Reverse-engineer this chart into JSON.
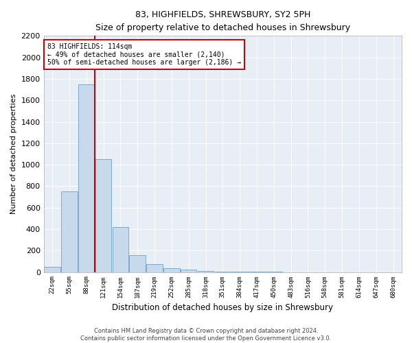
{
  "title": "83, HIGHFIELDS, SHREWSBURY, SY2 5PH",
  "subtitle": "Size of property relative to detached houses in Shrewsbury",
  "xlabel": "Distribution of detached houses by size in Shrewsbury",
  "ylabel": "Number of detached properties",
  "bar_labels": [
    "22sqm",
    "55sqm",
    "88sqm",
    "121sqm",
    "154sqm",
    "187sqm",
    "219sqm",
    "252sqm",
    "285sqm",
    "318sqm",
    "351sqm",
    "384sqm",
    "417sqm",
    "450sqm",
    "483sqm",
    "516sqm",
    "548sqm",
    "581sqm",
    "614sqm",
    "647sqm",
    "680sqm"
  ],
  "bar_values": [
    50,
    750,
    1750,
    1050,
    420,
    160,
    75,
    35,
    20,
    10,
    5,
    2,
    2,
    1,
    0,
    0,
    0,
    0,
    0,
    0,
    0
  ],
  "bar_color": "#c9d9ec",
  "bar_edge_color": "#6a9fc8",
  "background_color": "#e8eef5",
  "grid_color": "#ffffff",
  "ylim_max": 2200,
  "yticks": [
    0,
    200,
    400,
    600,
    800,
    1000,
    1200,
    1400,
    1600,
    1800,
    2000,
    2200
  ],
  "vline_x_index": 2.5,
  "annotation_line1": "83 HIGHFIELDS: 114sqm",
  "annotation_line2": "← 49% of detached houses are smaller (2,140)",
  "annotation_line3": "50% of semi-detached houses are larger (2,186) →",
  "annotation_box_color": "#ffffff",
  "annotation_box_edge": "#cc0000",
  "vline_color": "#cc0000",
  "footer_line1": "Contains HM Land Registry data © Crown copyright and database right 2024.",
  "footer_line2": "Contains public sector information licensed under the Open Government Licence v3.0.",
  "fig_width": 6.0,
  "fig_height": 5.0,
  "dpi": 100
}
